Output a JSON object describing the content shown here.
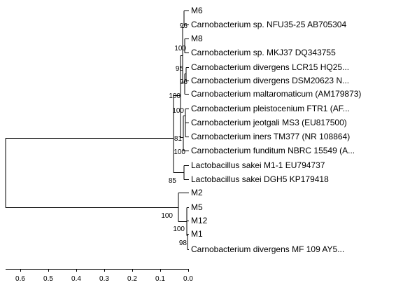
{
  "tree": {
    "leaves": [
      "M6",
      "Carnobacterium sp. NFU35-25 AB705304",
      "M8",
      "Carnobacterium sp. MKJ37 DQ343755",
      "Carnobacterium divergens LCR15 HQ25...",
      "Carnobacterium divergens DSM20623 N...",
      "Carnobacterium maltaromaticum (AM179873)",
      "Carnobacterium pleistocenium FTR1 (AF...",
      "Carnobacterium jeotgali MS3 (EU817500)",
      "Carnobacterium iners TM377 (NR 108864)",
      "Carnobacterium funditum NBRC 15549 (A...",
      "Lactobacillus sakei M1-1 EU794737",
      "Lactobacillus sakei DGH5 KP179418",
      "M2",
      "M5",
      "M12",
      "M1",
      "Carnobacterium divergens MF 109 AY5..."
    ],
    "bootstrap": [
      "96",
      "100",
      "95",
      "96",
      "100",
      "100",
      "81",
      "100",
      "85",
      "100",
      "100",
      "98"
    ]
  },
  "scale": {
    "ticks": [
      "0.6",
      "0.5",
      "0.4",
      "0.3",
      "0.2",
      "0.1",
      "0.0"
    ]
  }
}
